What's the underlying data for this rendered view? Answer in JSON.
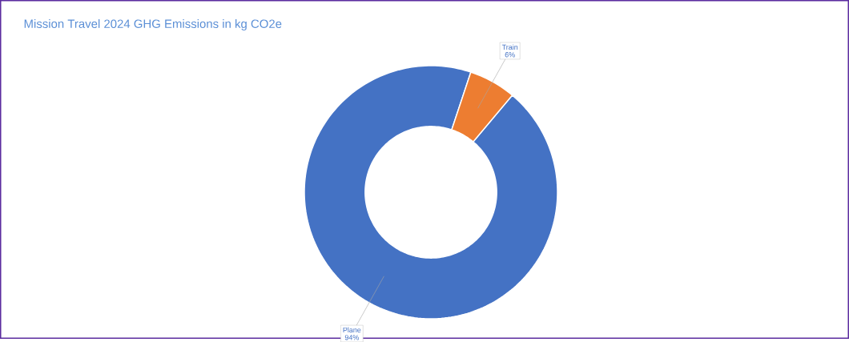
{
  "chart_data": {
    "type": "donut",
    "title": "Mission Travel 2024 GHG Emissions in kg CO2e",
    "categories": [
      "Plane",
      "Train"
    ],
    "values": [
      94,
      6
    ],
    "colors": [
      "#4472c4",
      "#ed7d31"
    ],
    "value_labels": [
      "94%",
      "6%"
    ]
  }
}
